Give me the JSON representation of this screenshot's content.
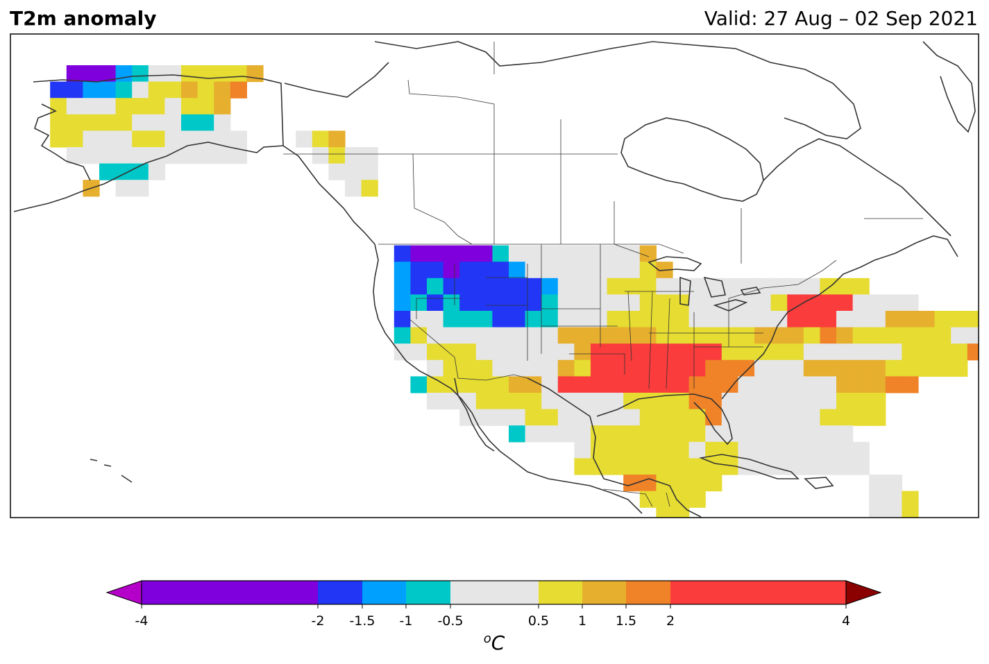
{
  "title": "T2m anomaly",
  "valid": "Valid: 27 Aug – 02 Sep 2021",
  "colorbar": {
    "label": "oC",
    "label_sup": "o",
    "label_main": "C",
    "ticks": [
      "-4",
      "-2",
      "-1.5",
      "-1",
      "-0.5",
      "0.5",
      "1",
      "1.5",
      "2",
      "4"
    ],
    "tick_values": [
      -4,
      -2,
      -1.5,
      -1,
      -0.5,
      0.5,
      1,
      1.5,
      2,
      4
    ],
    "under_color": "#b400c8",
    "over_color": "#8b0000",
    "bins": [
      {
        "from": -4,
        "to": -2,
        "color": "#7f00dc"
      },
      {
        "from": -2,
        "to": -1.5,
        "color": "#2137f5"
      },
      {
        "from": -1.5,
        "to": -1,
        "color": "#00a0ff"
      },
      {
        "from": -1,
        "to": -0.5,
        "color": "#00c8c8"
      },
      {
        "from": -0.5,
        "to": 0.5,
        "color": "#e6e6e6"
      },
      {
        "from": 0.5,
        "to": 1,
        "color": "#e6dc32"
      },
      {
        "from": 1,
        "to": 1.5,
        "color": "#e6af2d"
      },
      {
        "from": 1.5,
        "to": 2,
        "color": "#f08228"
      },
      {
        "from": 2,
        "to": 4,
        "color": "#fa3c3c"
      }
    ]
  },
  "anomaly_grid": {
    "colors": {
      "P": "#7f00dc",
      "B": "#2137f5",
      "L": "#00a0ff",
      "C": "#00c8c8",
      "G": "#e6e6e6",
      "Y": "#e6dc32",
      "O": "#e6af2d",
      "D": "#f08228",
      "R": "#fa3c3c"
    },
    "rows": [
      "   PPPLCGGYYYYO                                                ",
      "  BBLLCGYYOYOD                                                 ",
      "  YGGGYYYGYYO                                                  ",
      "  YYYYYGGGCCG                                                  ",
      "  YYGGGYYGGGGG   GYO                                           ",
      "   GGGGGGGGGGG    GYGG                                         ",
      "     CCCG          GGG                                         ",
      "    O GG            GY                                         ",
      "                                                               ",
      "                                                               ",
      "                                                               ",
      "                       BPPPPPCGGGGGGGGO                        ",
      "                       LBBPBBBLGGGGGGGYO                       ",
      "                       LBCBBBBBBLGGGYYYGGGGGGGGGGYYY           ",
      "                       LCBCBBBBBCGGGGGYYYGGGGGYRRRRGGGG        ",
      "                       BGGCCCBBCCGGGYYYYYGGGGGGRRRGGGOOOYYYGC  ",
      "                       CYGGGGGGGGOOOOOOYYYYYYOOOYDOYYYYYYGGG   ",
      "                       GGYYYGGGGGGORRRRRRRRYYYYYGGGGGGYYYYDD   ",
      "                         GYYYGGGGOYRRRRRRRDDDGGGOOOOOYYYYY     ",
      "                        CYYYYYOOGRRRRRRRRDDDGGGGGGOOODD        ",
      "                         GGGYYYYGGGGGYYYYDDGGGGGGGYYY          ",
      "                           GGGGYYGGGGGYYYYDGGGGGGYYYY          ",
      "                              CGGGGYYYYYYYGGGGGGGGG            ",
      "                                  GYYYYYYGYYGGGGGGGG           ",
      "                                  YYYYYYYYYYGGGGGGGG           ",
      "                                     DDYYYY         GG         ",
      "                                      YYYY          GGY        ",
      "                                       YY           GGY        "
    ]
  }
}
